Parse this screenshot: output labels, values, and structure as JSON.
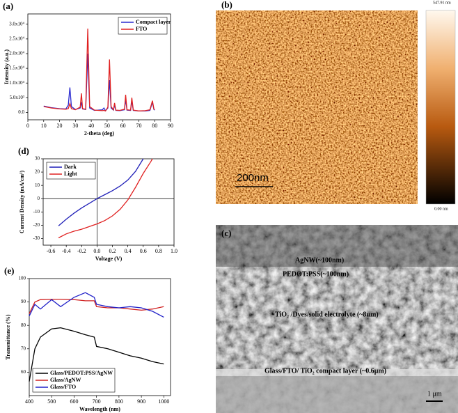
{
  "chart_data": [
    {
      "type": "line",
      "panel": "(a)",
      "xlabel": "2-theta (deg)",
      "ylabel": "Intensity (a.u.)",
      "legend": "upper right",
      "xlim": [
        0,
        90
      ],
      "xticks": [
        0,
        10,
        20,
        30,
        40,
        50,
        60,
        70,
        80,
        90
      ],
      "ylim": [
        -2500,
        33500
      ],
      "yticks": [
        {
          "value": 0,
          "label": "0.0"
        },
        {
          "value": 5000,
          "label": "5.0x10³"
        },
        {
          "value": 10000,
          "label": "1.0x10⁴"
        },
        {
          "value": 15000,
          "label": "1.5x10⁴"
        },
        {
          "value": 20000,
          "label": "2.0x10⁴"
        },
        {
          "value": 25000,
          "label": "2.5x10⁴"
        },
        {
          "value": 30000,
          "label": "3.0x10⁴"
        }
      ],
      "x": [
        10,
        15,
        20,
        24,
        25.5,
        26.5,
        27.5,
        30,
        33,
        33.8,
        34.5,
        36.5,
        37.8,
        39,
        42,
        47,
        48,
        49,
        50.5,
        51.5,
        52.5,
        54,
        54.7,
        55.5,
        58,
        61,
        61.7,
        62.5,
        64.8,
        65.6,
        66.5,
        70,
        74,
        77,
        78.6,
        79.5,
        80
      ],
      "series": [
        {
          "name": "Compact layer",
          "color": "#2a2ad0",
          "values": [
            2200,
            1600,
            1300,
            1200,
            2500,
            8500,
            2000,
            1000,
            1500,
            3500,
            1200,
            1000,
            20000,
            1500,
            700,
            900,
            1500,
            600,
            1500,
            11000,
            1500,
            800,
            2500,
            700,
            600,
            900,
            4500,
            800,
            700,
            4000,
            700,
            500,
            500,
            700,
            3500,
            1000,
            800
          ]
        },
        {
          "name": "FTO",
          "color": "#e02020",
          "values": [
            2000,
            1500,
            1200,
            1100,
            1300,
            3000,
            1300,
            900,
            1800,
            6500,
            1300,
            1100,
            28500,
            2000,
            800,
            600,
            700,
            500,
            1800,
            18000,
            2000,
            900,
            3200,
            800,
            700,
            1100,
            6000,
            900,
            800,
            5000,
            800,
            500,
            600,
            900,
            4000,
            1200,
            900
          ]
        }
      ]
    },
    {
      "type": "line",
      "panel": "(d)",
      "xlabel": "Voltage (V)",
      "ylabel": "Current Density (mA/cm²)",
      "legend": "upper left",
      "zero_lines": true,
      "xlim": [
        -0.7,
        1.0
      ],
      "xticks": [
        -0.6,
        -0.4,
        -0.2,
        {
          "value": 0,
          "label": "0.0"
        },
        0.2,
        0.4,
        0.6,
        0.8,
        {
          "value": 1,
          "label": "1.0"
        }
      ],
      "ylim": [
        -35,
        30
      ],
      "yticks": [
        -30,
        -20,
        -10,
        0,
        10,
        20,
        30
      ],
      "x": [
        -0.5,
        -0.4,
        -0.3,
        -0.2,
        -0.1,
        0,
        0.1,
        0.2,
        0.3,
        0.4,
        0.5,
        0.6,
        0.7,
        0.72
      ],
      "series": [
        {
          "name": "Dark",
          "color": "#1f1fb8",
          "values": [
            -20.5,
            -15.5,
            -11,
            -7,
            -3.5,
            0,
            3,
            6,
            9.5,
            14,
            20.5,
            30,
            null,
            null
          ]
        },
        {
          "name": "Light",
          "color": "#e02020",
          "values": [
            -29.5,
            -26.5,
            -24.5,
            -23,
            -21,
            -19,
            -16.5,
            -13,
            -8,
            -1,
            8.5,
            19,
            28,
            30
          ]
        }
      ]
    },
    {
      "type": "line",
      "panel": "(e)",
      "xlabel": "Wavelength (nm)",
      "ylabel": "Transmittance (%)",
      "legend": "lower left",
      "xlim": [
        400,
        1030
      ],
      "xticks": [
        400,
        500,
        600,
        700,
        800,
        900,
        1000
      ],
      "ylim": [
        50,
        100
      ],
      "yticks": [
        60,
        70,
        80,
        90,
        100
      ],
      "x": [
        400,
        425,
        450,
        500,
        540,
        600,
        650,
        690,
        700,
        750,
        800,
        850,
        900,
        950,
        1000
      ],
      "series": [
        {
          "name": "Glass/PEDOT:PSS/AgNW",
          "color": "#000000",
          "values": [
            56,
            70,
            75,
            78.5,
            79,
            77.5,
            76,
            75,
            71,
            70,
            68.5,
            67,
            66,
            64.5,
            63.5
          ]
        },
        {
          "name": "Glass/AgNW",
          "color": "#d02020",
          "values": [
            85,
            90,
            91,
            91.2,
            91.2,
            91,
            90.5,
            90.5,
            88,
            87.5,
            87.5,
            87,
            86.5,
            87,
            88
          ]
        },
        {
          "name": "Glass/FTO",
          "color": "#2020c8",
          "values": [
            84,
            89,
            87,
            91,
            88,
            92,
            94,
            92,
            89,
            88,
            87.5,
            88,
            87.5,
            86,
            83.5
          ]
        }
      ]
    }
  ],
  "images": [
    {
      "panel": "(b)",
      "scale_bar": "200nm",
      "colorbar_max": "547.91 nm",
      "colorbar_min": "0.00 nm"
    },
    {
      "panel": "(c)",
      "labels": [
        "AgNW(~100nm)",
        "PEDOT:PSS(~100nm)",
        "TiO₂ /Dyes/solid electrolyte (~8um)",
        "Glass/FTO/ TiO₂ compact layer (~0.6μm)"
      ],
      "scale_bar": "1 μm"
    }
  ]
}
